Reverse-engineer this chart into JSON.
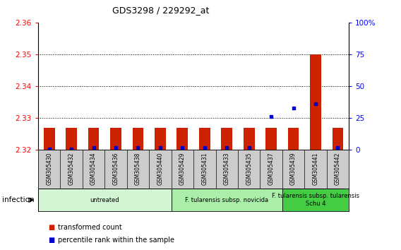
{
  "title": "GDS3298 / 229292_at",
  "samples": [
    "GSM305430",
    "GSM305432",
    "GSM305434",
    "GSM305436",
    "GSM305438",
    "GSM305440",
    "GSM305429",
    "GSM305431",
    "GSM305433",
    "GSM305435",
    "GSM305437",
    "GSM305439",
    "GSM305441",
    "GSM305442"
  ],
  "transformed_counts": [
    2.327,
    2.327,
    2.327,
    2.327,
    2.327,
    2.327,
    2.327,
    2.327,
    2.327,
    2.327,
    2.327,
    2.327,
    2.35,
    2.327
  ],
  "percentile_ranks": [
    1,
    1,
    2,
    2,
    2,
    2,
    2,
    2,
    2,
    2,
    26,
    33,
    36,
    2
  ],
  "ylim_left": [
    2.32,
    2.36
  ],
  "ylim_right": [
    0,
    100
  ],
  "bar_color": "#cc2200",
  "dot_color": "#0000cc",
  "bar_bottom": 2.32,
  "right_ticks": [
    0,
    25,
    50,
    75,
    100
  ],
  "right_tick_labels": [
    "0",
    "25",
    "50",
    "75",
    "100%"
  ],
  "left_ticks": [
    2.32,
    2.33,
    2.34,
    2.35,
    2.36
  ],
  "groups": [
    {
      "label": "untreated",
      "start": 0,
      "end": 5,
      "color": "#d4f5d4"
    },
    {
      "label": "F. tularensis subsp. novicida",
      "start": 6,
      "end": 10,
      "color": "#aaeeaa"
    },
    {
      "label": "F. tularensis subsp. tularensis\nSchu 4",
      "start": 11,
      "end": 13,
      "color": "#44cc44"
    }
  ],
  "infection_label": "infection",
  "legend_items": [
    {
      "color": "#cc2200",
      "label": "transformed count"
    },
    {
      "color": "#0000cc",
      "label": "percentile rank within the sample"
    }
  ],
  "bg_color": "#ffffff",
  "grid_color": "#000000",
  "tick_area_color": "#cccccc"
}
